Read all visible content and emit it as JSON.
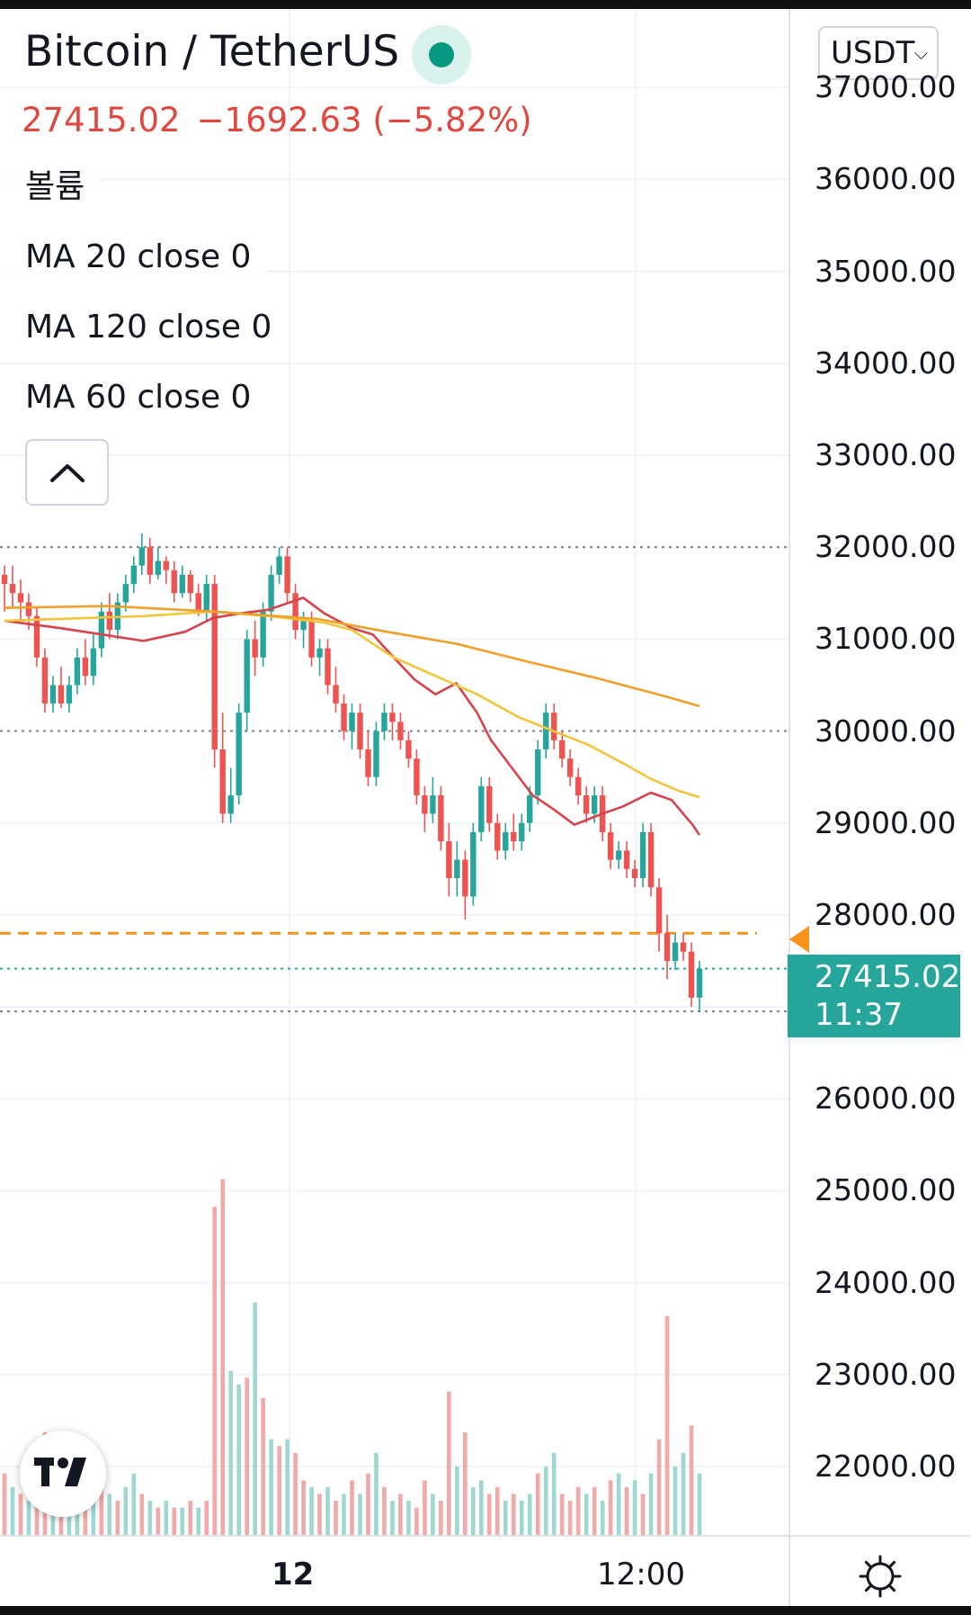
{
  "symbol": {
    "title": "Bitcoin / TetherUS",
    "last_price": "27415.02",
    "change": "−1692.63 (−5.82%)",
    "status": "live"
  },
  "legend": {
    "volume": "볼륨",
    "ma20": "MA 20 close 0",
    "ma120": "MA 120 close 0",
    "ma60": "MA 60 close 0"
  },
  "currency": {
    "selected": "USDT"
  },
  "price_axis": {
    "labels": [
      "37000.00",
      "36000.00",
      "35000.00",
      "34000.00",
      "33000.00",
      "32000.00",
      "31000.00",
      "30000.00",
      "29000.00",
      "28000.00",
      "26000.00",
      "25000.00",
      "24000.00",
      "23000.00",
      "22000.00"
    ],
    "last_price_label": "27415.02",
    "countdown": "11:37"
  },
  "time_axis": {
    "labels": [
      {
        "text": "12",
        "bold": true
      },
      {
        "text": "12:00",
        "bold": false
      }
    ]
  },
  "icons": {
    "collapse": "chevron-up-icon",
    "settings": "gear-icon",
    "logo": "tradingview-logo-icon",
    "currency_chevron": "chevron-down-icon"
  },
  "colors": {
    "up": "#26a69a",
    "down": "#ef5350",
    "ma20": "#d6434b",
    "ma60": "#f2c53d",
    "ma120": "#f0a028",
    "alert": "#f7931a",
    "last_price_bg": "#26a69a",
    "change_text": "#e0473f"
  },
  "chart_data": {
    "type": "candlestick",
    "ylim": [
      21500,
      37600
    ],
    "price_lines": {
      "last": 27415.02,
      "alert": 27800
    },
    "series": [
      {
        "name": "MA 20",
        "points": [
          [
            0,
            31200
          ],
          [
            8,
            31120
          ],
          [
            14,
            31050
          ],
          [
            20,
            30980
          ],
          [
            26,
            31080
          ],
          [
            30,
            31230
          ],
          [
            34,
            31280
          ],
          [
            38,
            31320
          ],
          [
            43,
            31450
          ],
          [
            46,
            31280
          ],
          [
            50,
            31120
          ],
          [
            53,
            31050
          ],
          [
            56,
            30800
          ],
          [
            59,
            30560
          ],
          [
            62,
            30400
          ],
          [
            65,
            30520
          ],
          [
            68,
            30200
          ],
          [
            70,
            29900
          ],
          [
            73,
            29600
          ],
          [
            76,
            29300
          ],
          [
            79,
            29150
          ],
          [
            82,
            28980
          ],
          [
            86,
            29100
          ],
          [
            89,
            29180
          ],
          [
            93,
            29330
          ],
          [
            96,
            29250
          ],
          [
            99,
            28980
          ],
          [
            100,
            28870
          ]
        ]
      },
      {
        "name": "MA 60",
        "points": [
          [
            0,
            31200
          ],
          [
            20,
            31250
          ],
          [
            30,
            31300
          ],
          [
            38,
            31250
          ],
          [
            46,
            31180
          ],
          [
            50,
            31100
          ],
          [
            56,
            30800
          ],
          [
            62,
            30600
          ],
          [
            68,
            30400
          ],
          [
            74,
            30150
          ],
          [
            79,
            30000
          ],
          [
            84,
            29850
          ],
          [
            89,
            29650
          ],
          [
            93,
            29480
          ],
          [
            97,
            29350
          ],
          [
            100,
            29280
          ]
        ]
      },
      {
        "name": "MA 120",
        "points": [
          [
            0,
            31340
          ],
          [
            15,
            31360
          ],
          [
            30,
            31300
          ],
          [
            45,
            31220
          ],
          [
            55,
            31080
          ],
          [
            65,
            30950
          ],
          [
            75,
            30760
          ],
          [
            85,
            30580
          ],
          [
            95,
            30380
          ],
          [
            100,
            30270
          ]
        ]
      }
    ],
    "candles": [
      [
        31700,
        31600,
        31800,
        31300
      ],
      [
        31600,
        31500,
        31800,
        31350
      ],
      [
        31500,
        31400,
        31650,
        31200
      ],
      [
        31400,
        31250,
        31500,
        31100
      ],
      [
        31250,
        30800,
        31350,
        30700
      ],
      [
        30800,
        30300,
        30900,
        30200
      ],
      [
        30300,
        30500,
        30600,
        30200
      ],
      [
        30500,
        30300,
        30700,
        30250
      ],
      [
        30300,
        30500,
        30600,
        30200
      ],
      [
        30500,
        30800,
        30900,
        30400
      ],
      [
        30800,
        30600,
        31000,
        30500
      ],
      [
        30600,
        30900,
        31050,
        30500
      ],
      [
        30900,
        31300,
        31400,
        30800
      ],
      [
        31300,
        31100,
        31500,
        31000
      ],
      [
        31100,
        31400,
        31500,
        31000
      ],
      [
        31400,
        31600,
        31700,
        31300
      ],
      [
        31600,
        31800,
        31900,
        31500
      ],
      [
        31800,
        32000,
        32150,
        31700
      ],
      [
        32000,
        31700,
        32100,
        31600
      ],
      [
        31700,
        31850,
        32000,
        31650
      ],
      [
        31850,
        31750,
        31900,
        31600
      ],
      [
        31750,
        31500,
        31850,
        31400
      ],
      [
        31500,
        31700,
        31800,
        31450
      ],
      [
        31700,
        31500,
        31750,
        31400
      ],
      [
        31500,
        31300,
        31600,
        31250
      ],
      [
        31300,
        31600,
        31700,
        31200
      ],
      [
        31600,
        29800,
        31700,
        29600
      ],
      [
        29800,
        29100,
        30200,
        29000
      ],
      [
        29100,
        29300,
        29600,
        29000
      ],
      [
        29300,
        30200,
        30300,
        29200
      ],
      [
        30200,
        31000,
        31100,
        30000
      ],
      [
        31000,
        30800,
        31200,
        30600
      ],
      [
        30800,
        31300,
        31400,
        30700
      ],
      [
        31300,
        31700,
        31800,
        31200
      ],
      [
        31700,
        31900,
        32000,
        31600
      ],
      [
        31900,
        31500,
        32000,
        31400
      ],
      [
        31500,
        31100,
        31600,
        31000
      ],
      [
        31100,
        31200,
        31300,
        30900
      ],
      [
        31200,
        30800,
        31300,
        30700
      ],
      [
        30800,
        30900,
        31000,
        30600
      ],
      [
        30900,
        30500,
        31000,
        30400
      ],
      [
        30500,
        30300,
        30700,
        30200
      ],
      [
        30300,
        30000,
        30400,
        29900
      ],
      [
        30000,
        30200,
        30300,
        29800
      ],
      [
        30200,
        29800,
        30300,
        29700
      ],
      [
        29800,
        29500,
        30000,
        29400
      ],
      [
        29500,
        30000,
        30100,
        29400
      ],
      [
        30000,
        30200,
        30300,
        29900
      ],
      [
        30200,
        30100,
        30300,
        29900
      ],
      [
        30100,
        29900,
        30200,
        29800
      ],
      [
        29900,
        29700,
        30000,
        29600
      ],
      [
        29700,
        29300,
        29800,
        29200
      ],
      [
        29300,
        29100,
        29400,
        28900
      ],
      [
        29100,
        29300,
        29500,
        29000
      ],
      [
        29300,
        28800,
        29400,
        28700
      ],
      [
        28800,
        28400,
        29000,
        28200
      ],
      [
        28400,
        28600,
        28800,
        28200
      ],
      [
        28600,
        28200,
        28700,
        27950
      ],
      [
        28200,
        28900,
        29000,
        28100
      ],
      [
        28900,
        29400,
        29500,
        28800
      ],
      [
        29400,
        29000,
        29500,
        28900
      ],
      [
        29000,
        28700,
        29100,
        28600
      ],
      [
        28700,
        28900,
        29000,
        28600
      ],
      [
        28900,
        28800,
        29100,
        28700
      ],
      [
        28800,
        29000,
        29100,
        28700
      ],
      [
        29000,
        29300,
        29400,
        28900
      ],
      [
        29300,
        29800,
        29900,
        29200
      ],
      [
        29800,
        30200,
        30300,
        29700
      ],
      [
        30200,
        29900,
        30300,
        29800
      ],
      [
        29900,
        29700,
        30000,
        29600
      ],
      [
        29700,
        29500,
        29800,
        29400
      ],
      [
        29500,
        29300,
        29600,
        29200
      ],
      [
        29300,
        29100,
        29400,
        29000
      ],
      [
        29100,
        29300,
        29400,
        29000
      ],
      [
        29300,
        28900,
        29400,
        28800
      ],
      [
        28900,
        28600,
        29000,
        28500
      ],
      [
        28600,
        28700,
        28800,
        28500
      ],
      [
        28700,
        28500,
        28800,
        28400
      ],
      [
        28500,
        28400,
        28600,
        28300
      ],
      [
        28400,
        28900,
        29000,
        28300
      ],
      [
        28900,
        28300,
        29000,
        28200
      ],
      [
        28300,
        27800,
        28400,
        27600
      ],
      [
        27800,
        27500,
        28000,
        27300
      ],
      [
        27500,
        27700,
        27800,
        27400
      ],
      [
        27700,
        27600,
        27800,
        27500
      ],
      [
        27600,
        27100,
        27700,
        27000
      ],
      [
        27100,
        27415,
        27500,
        26950
      ]
    ],
    "volume": [
      {
        "v": 9,
        "d": 1
      },
      {
        "v": 7,
        "d": 0
      },
      {
        "v": 6,
        "d": 1
      },
      {
        "v": 5,
        "d": 0
      },
      {
        "v": 8,
        "d": 1
      },
      {
        "v": 15,
        "d": 1
      },
      {
        "v": 10,
        "d": 0
      },
      {
        "v": 6,
        "d": 1
      },
      {
        "v": 7,
        "d": 0
      },
      {
        "v": 5,
        "d": 0
      },
      {
        "v": 4,
        "d": 1
      },
      {
        "v": 8,
        "d": 0
      },
      {
        "v": 9,
        "d": 1
      },
      {
        "v": 6,
        "d": 0
      },
      {
        "v": 5,
        "d": 1
      },
      {
        "v": 7,
        "d": 0
      },
      {
        "v": 9,
        "d": 0
      },
      {
        "v": 6,
        "d": 1
      },
      {
        "v": 5,
        "d": 0
      },
      {
        "v": 4,
        "d": 1
      },
      {
        "v": 5,
        "d": 0
      },
      {
        "v": 4,
        "d": 1
      },
      {
        "v": 4,
        "d": 0
      },
      {
        "v": 5,
        "d": 1
      },
      {
        "v": 4,
        "d": 0
      },
      {
        "v": 5,
        "d": 1
      },
      {
        "v": 48,
        "d": 1
      },
      {
        "v": 52,
        "d": 1
      },
      {
        "v": 24,
        "d": 0
      },
      {
        "v": 22,
        "d": 0
      },
      {
        "v": 23,
        "d": 1
      },
      {
        "v": 34,
        "d": 0
      },
      {
        "v": 20,
        "d": 1
      },
      {
        "v": 14,
        "d": 0
      },
      {
        "v": 13,
        "d": 1
      },
      {
        "v": 14,
        "d": 0
      },
      {
        "v": 12,
        "d": 1
      },
      {
        "v": 8,
        "d": 1
      },
      {
        "v": 7,
        "d": 0
      },
      {
        "v": 6,
        "d": 1
      },
      {
        "v": 7,
        "d": 0
      },
      {
        "v": 5,
        "d": 1
      },
      {
        "v": 6,
        "d": 0
      },
      {
        "v": 8,
        "d": 1
      },
      {
        "v": 6,
        "d": 0
      },
      {
        "v": 9,
        "d": 1
      },
      {
        "v": 12,
        "d": 0
      },
      {
        "v": 7,
        "d": 1
      },
      {
        "v": 5,
        "d": 0
      },
      {
        "v": 6,
        "d": 1
      },
      {
        "v": 5,
        "d": 0
      },
      {
        "v": 4,
        "d": 1
      },
      {
        "v": 8,
        "d": 1
      },
      {
        "v": 6,
        "d": 0
      },
      {
        "v": 5,
        "d": 1
      },
      {
        "v": 21,
        "d": 1
      },
      {
        "v": 10,
        "d": 0
      },
      {
        "v": 15,
        "d": 1
      },
      {
        "v": 7,
        "d": 0
      },
      {
        "v": 8,
        "d": 0
      },
      {
        "v": 6,
        "d": 1
      },
      {
        "v": 7,
        "d": 1
      },
      {
        "v": 5,
        "d": 0
      },
      {
        "v": 6,
        "d": 1
      },
      {
        "v": 5,
        "d": 0
      },
      {
        "v": 6,
        "d": 0
      },
      {
        "v": 9,
        "d": 1
      },
      {
        "v": 10,
        "d": 0
      },
      {
        "v": 12,
        "d": 0
      },
      {
        "v": 6,
        "d": 1
      },
      {
        "v": 5,
        "d": 1
      },
      {
        "v": 7,
        "d": 1
      },
      {
        "v": 6,
        "d": 0
      },
      {
        "v": 7,
        "d": 1
      },
      {
        "v": 5,
        "d": 0
      },
      {
        "v": 8,
        "d": 1
      },
      {
        "v": 9,
        "d": 0
      },
      {
        "v": 7,
        "d": 1
      },
      {
        "v": 8,
        "d": 0
      },
      {
        "v": 6,
        "d": 1
      },
      {
        "v": 9,
        "d": 0
      },
      {
        "v": 14,
        "d": 1
      },
      {
        "v": 32,
        "d": 1
      },
      {
        "v": 10,
        "d": 0
      },
      {
        "v": 12,
        "d": 0
      },
      {
        "v": 16,
        "d": 1
      },
      {
        "v": 9,
        "d": 0
      }
    ]
  }
}
